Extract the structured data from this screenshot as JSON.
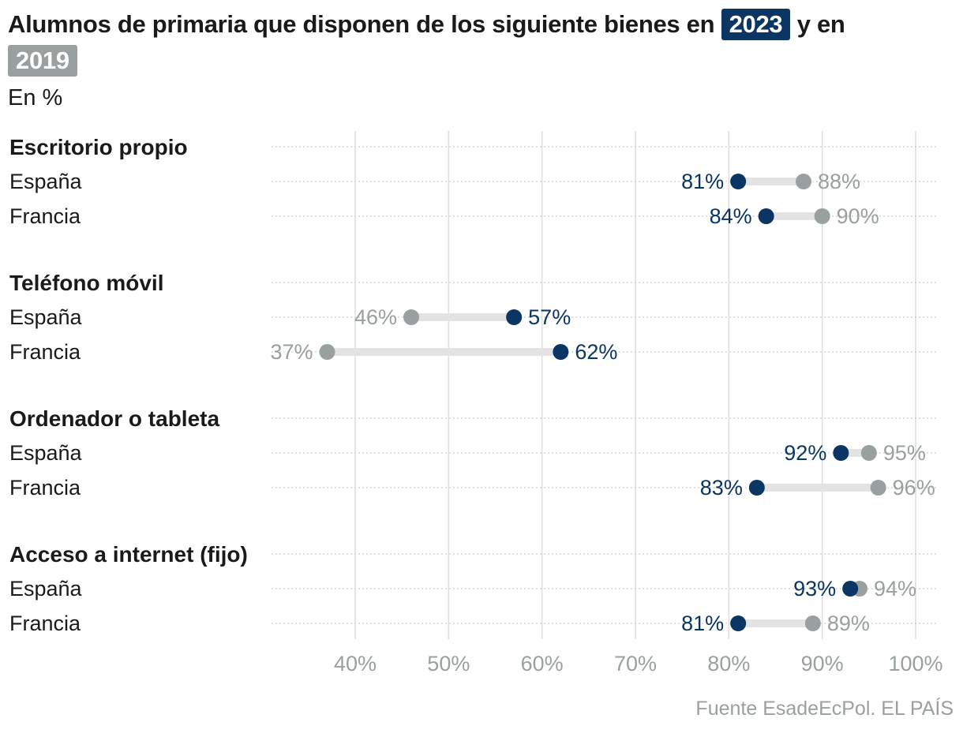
{
  "title": {
    "before": "Alumnos de primaria que disponen de los siguiente bienes en",
    "year_a": "2023",
    "middle": "y en",
    "year_b": "2019"
  },
  "subtitle": "En %",
  "source": "Fuente EsadeEcPol. EL PAÍS",
  "colors": {
    "y2023": "#0b3563",
    "y2019": "#9aa0a0",
    "connector": "#e3e3e3",
    "grid": "#dedede"
  },
  "chart_data": {
    "type": "dumbbell",
    "title": "Alumnos de primaria que disponen de los siguiente bienes en 2023 y en 2019",
    "unit": "En %",
    "series": [
      "2023",
      "2019"
    ],
    "x_ticks": [
      40,
      50,
      60,
      70,
      80,
      90,
      100
    ],
    "tick_labels": [
      "40%",
      "50%",
      "60%",
      "70%",
      "80%",
      "90%",
      "100%"
    ],
    "xlim": [
      31,
      102
    ],
    "groups": [
      {
        "name": "Escritorio propio",
        "rows": [
          {
            "label": "España",
            "v2023": 81,
            "v2019": 88,
            "l2023": "81%",
            "l2019": "88%"
          },
          {
            "label": "Francia",
            "v2023": 84,
            "v2019": 90,
            "l2023": "84%",
            "l2019": "90%"
          }
        ]
      },
      {
        "name": "Teléfono móvil",
        "rows": [
          {
            "label": "España",
            "v2023": 57,
            "v2019": 46,
            "l2023": "57%",
            "l2019": "46%"
          },
          {
            "label": "Francia",
            "v2023": 62,
            "v2019": 37,
            "l2023": "62%",
            "l2019": "37%"
          }
        ]
      },
      {
        "name": "Ordenador o tableta",
        "rows": [
          {
            "label": "España",
            "v2023": 92,
            "v2019": 95,
            "l2023": "92%",
            "l2019": "95%"
          },
          {
            "label": "Francia",
            "v2023": 83,
            "v2019": 96,
            "l2023": "83%",
            "l2019": "96%"
          }
        ]
      },
      {
        "name": "Acceso a internet (fijo)",
        "rows": [
          {
            "label": "España",
            "v2023": 93,
            "v2019": 94,
            "l2023": "93%",
            "l2019": "94%"
          },
          {
            "label": "Francia",
            "v2023": 81,
            "v2019": 89,
            "l2023": "81%",
            "l2019": "89%"
          }
        ]
      }
    ]
  }
}
